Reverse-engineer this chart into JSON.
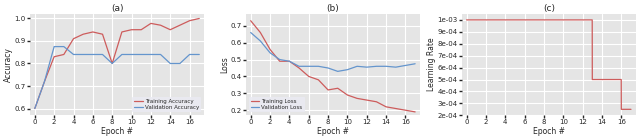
{
  "epochs": [
    0,
    1,
    2,
    3,
    4,
    5,
    6,
    7,
    8,
    9,
    10,
    11,
    12,
    13,
    14,
    15,
    16,
    17
  ],
  "train_acc": [
    0.6,
    0.72,
    0.83,
    0.84,
    0.91,
    0.93,
    0.94,
    0.93,
    0.8,
    0.94,
    0.95,
    0.95,
    0.978,
    0.97,
    0.95,
    0.97,
    0.99,
    1.0
  ],
  "val_acc": [
    0.6,
    0.72,
    0.875,
    0.875,
    0.84,
    0.84,
    0.84,
    0.84,
    0.8,
    0.84,
    0.84,
    0.84,
    0.84,
    0.84,
    0.8,
    0.8,
    0.84,
    0.84
  ],
  "train_loss": [
    0.73,
    0.66,
    0.56,
    0.49,
    0.49,
    0.45,
    0.4,
    0.38,
    0.32,
    0.33,
    0.29,
    0.27,
    0.26,
    0.25,
    0.22,
    0.21,
    0.2,
    0.19
  ],
  "val_loss": [
    0.66,
    0.61,
    0.54,
    0.5,
    0.49,
    0.46,
    0.46,
    0.46,
    0.45,
    0.43,
    0.44,
    0.46,
    0.455,
    0.46,
    0.46,
    0.455,
    0.465,
    0.475
  ],
  "lr_epochs_step": [
    0,
    12.99,
    13.0,
    15.99,
    16.0,
    17
  ],
  "lr_values_step": [
    0.001,
    0.001,
    0.0005,
    0.0005,
    0.00025,
    0.00025
  ],
  "train_color": "#cd5c5c",
  "val_color": "#6495cd",
  "bg_color": "#e5e5e5",
  "grid_color": "#ffffff",
  "label_train_acc": "Training Accuracy",
  "label_val_acc": "Validation Accuracy",
  "label_train_loss": "Training Loss",
  "label_val_loss": "Validation Loss",
  "xlabel": "Epoch #",
  "ylabel_acc": "Accuracy",
  "ylabel_loss": "Loss",
  "ylabel_lr": "Learning Rate",
  "title_a": "(a)",
  "title_b": "(b)",
  "title_c": "(c)",
  "acc_ylim": [
    0.57,
    1.02
  ],
  "loss_ylim": [
    0.17,
    0.77
  ],
  "lr_ylim": [
    0.0002,
    0.00105
  ],
  "xlim": [
    -0.5,
    17.5
  ],
  "xticks": [
    0,
    2,
    4,
    6,
    8,
    10,
    12,
    14,
    16
  ]
}
